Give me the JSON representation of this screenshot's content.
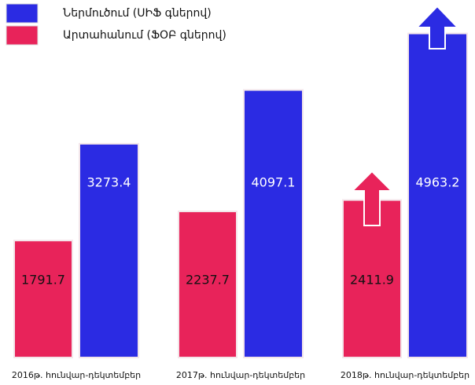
{
  "chart_data": {
    "type": "bar",
    "categories": [
      "2016թ. հունվար-դեկտեմբեր",
      "2017թ. հունվար-դեկտեմբեր",
      "2018թ. հունվար-դեկտեմբեր"
    ],
    "series": [
      {
        "name": "Ներմուծում (ՍԻՖ գներով)",
        "color": "#2b2be3",
        "values": [
          3273.4,
          4097.1,
          4963.2
        ]
      },
      {
        "name": "Արտահանում (ՖՕԲ գներով)",
        "color": "#e8235a",
        "values": [
          1791.7,
          2237.7,
          2411.9
        ]
      }
    ]
  }
}
